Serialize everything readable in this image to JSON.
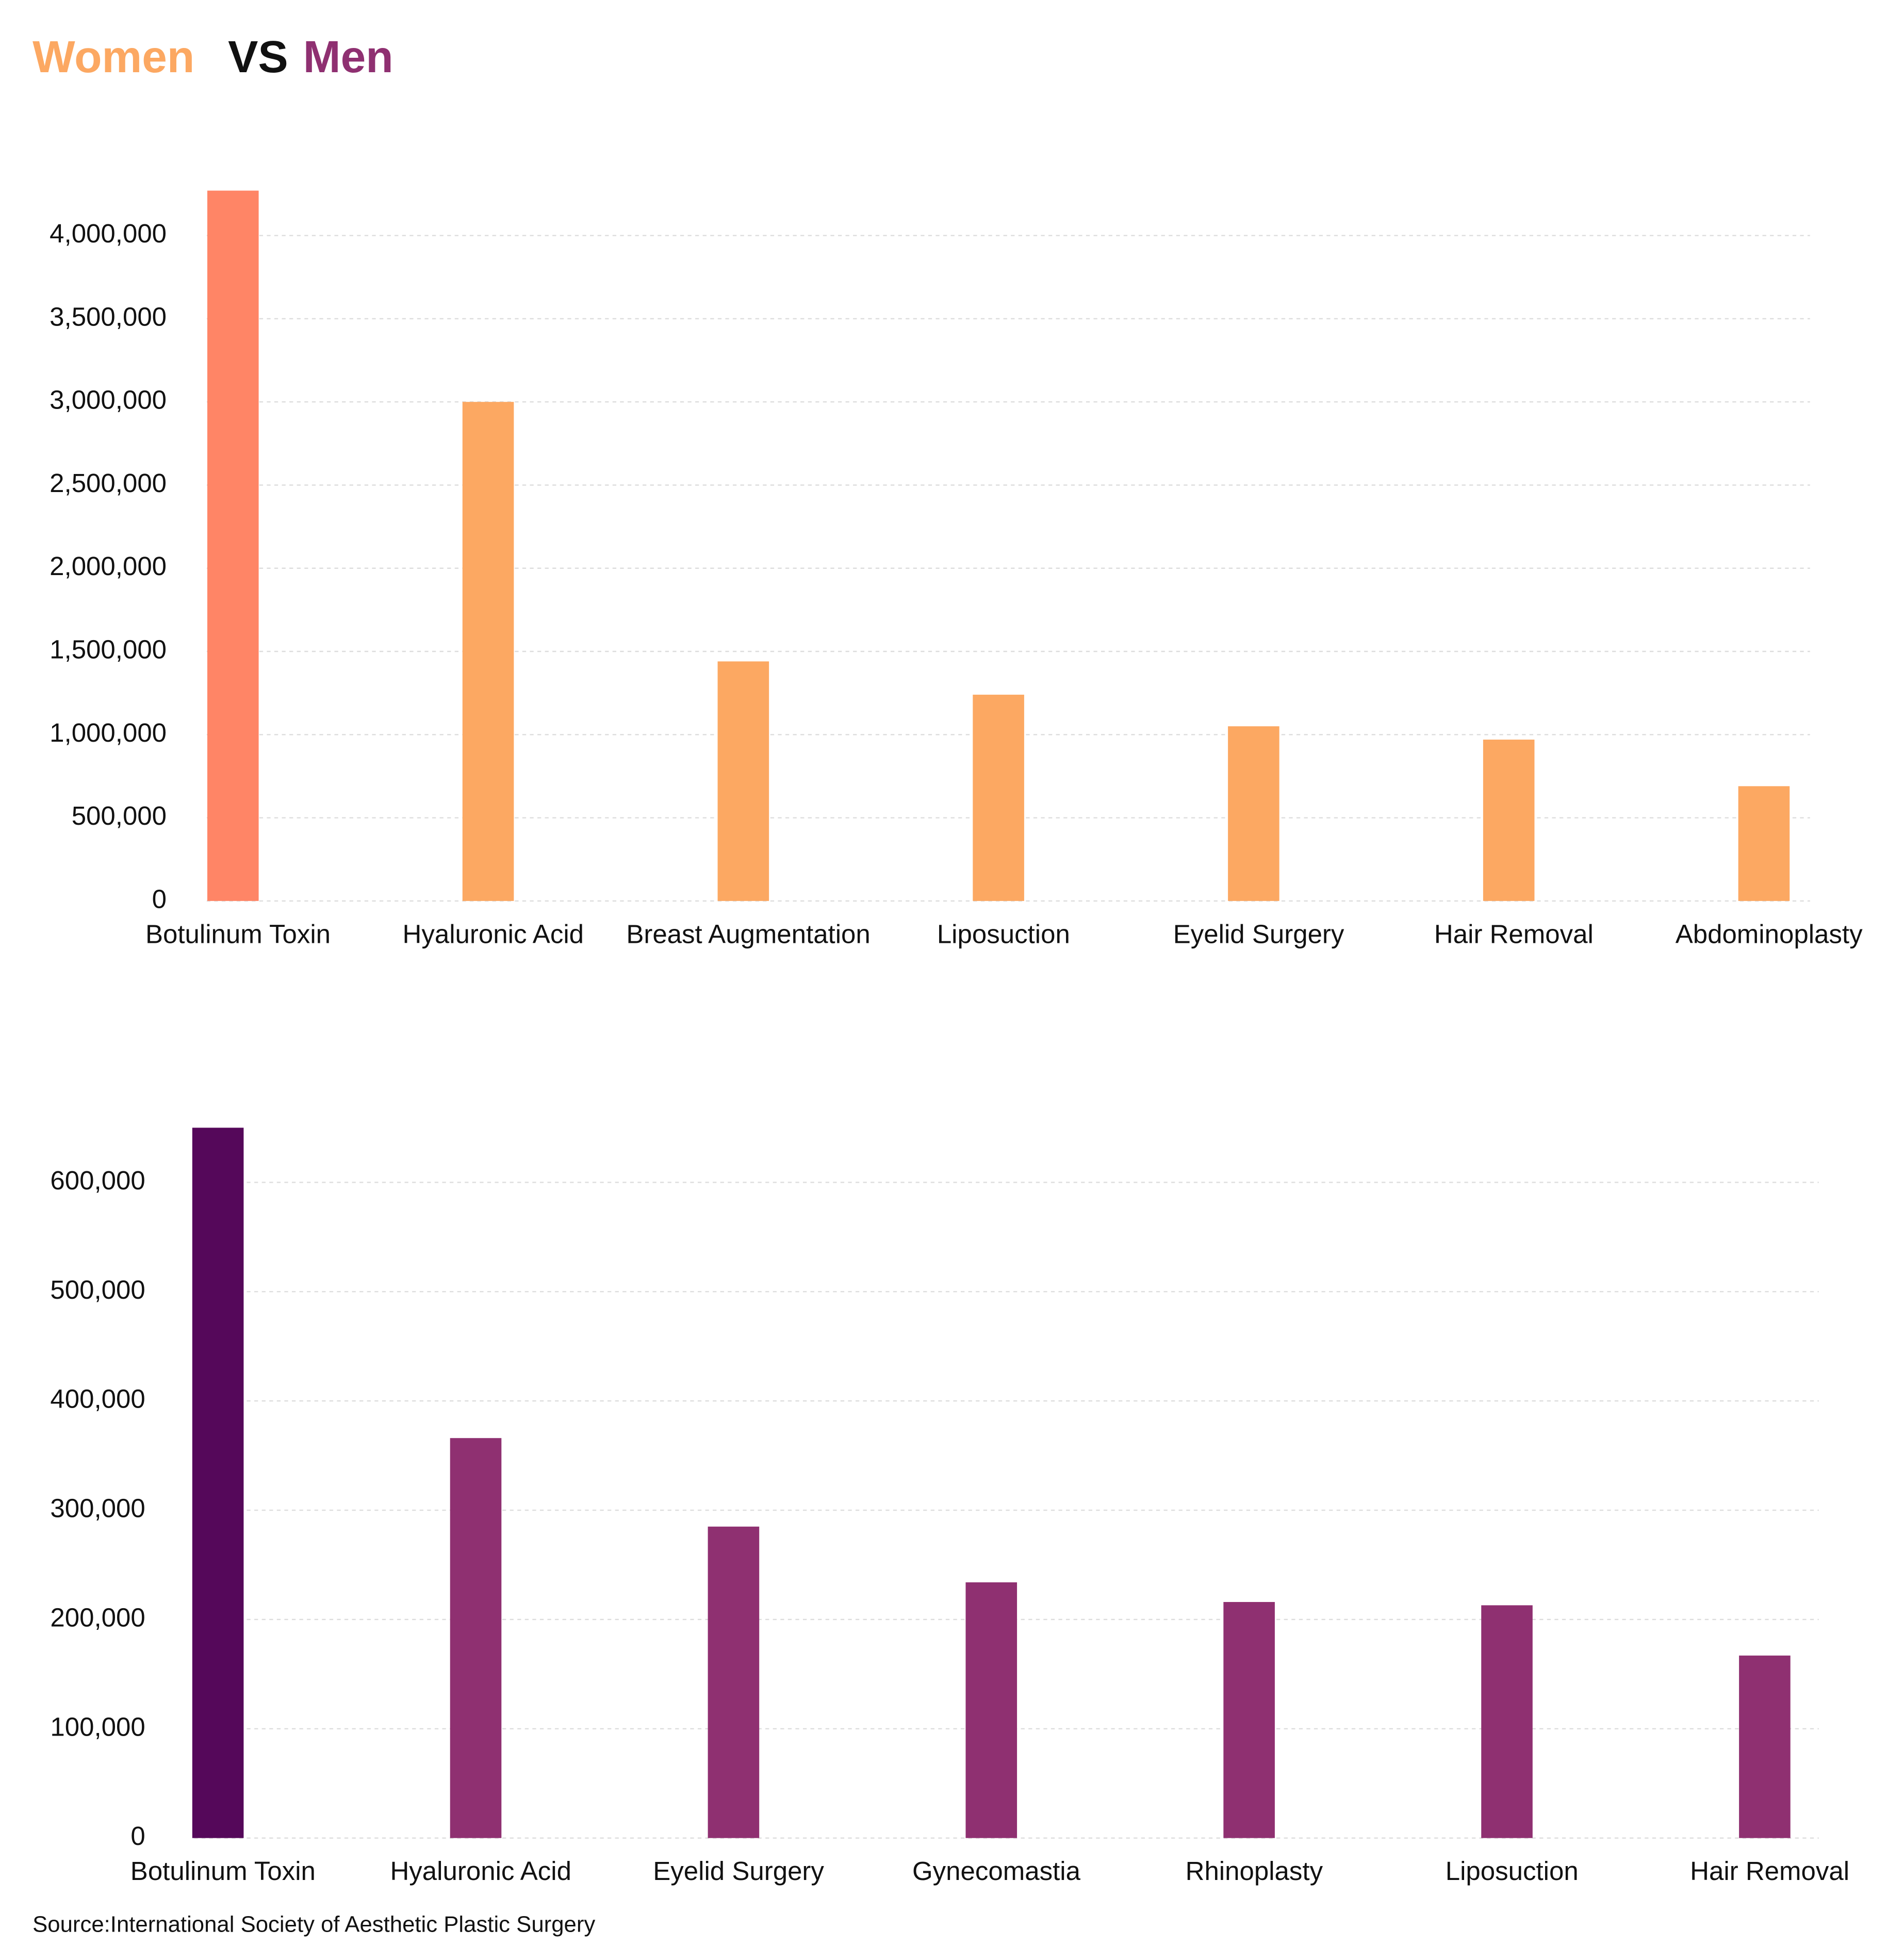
{
  "title": {
    "women": "Women",
    "vs": "VS",
    "men": "Men"
  },
  "source": "Source:International Society of Aesthetic Plastic Surgery",
  "chart_data": [
    {
      "type": "bar",
      "categories": [
        "Botulinum Toxin",
        "Hyaluronic Acid",
        "Breast Augmentation",
        "Liposuction",
        "Eyelid Surgery",
        "Hair Removal",
        "Abdominoplasty"
      ],
      "values": [
        4270000,
        3000000,
        1440000,
        1240000,
        1050000,
        970000,
        690000
      ],
      "colors": [
        "#ff8566",
        "#fca862",
        "#fca862",
        "#fca862",
        "#fca862",
        "#fca862",
        "#fca862"
      ],
      "ylim": [
        0,
        4300000
      ],
      "yticks": [
        0,
        {
          "value": 500000,
          "label": "500,000"
        },
        {
          "value": 1000000,
          "label": "1,000,000"
        },
        {
          "value": 1500000,
          "label": "1,500,000"
        },
        {
          "value": 2000000,
          "label": "2,000,000"
        },
        {
          "value": 2500000,
          "label": "2,500,000"
        },
        {
          "value": 3000000,
          "label": "3,000,000"
        },
        {
          "value": 3500000,
          "label": "3,500,000"
        },
        {
          "value": 4000000,
          "label": "4,000,000"
        }
      ],
      "grid": true
    },
    {
      "type": "bar",
      "categories": [
        "Botulinum Toxin",
        "Hyaluronic Acid",
        "Eyelid Surgery",
        "Gynecomastia",
        "Rhinoplasty",
        "Liposuction",
        "Hair Removal"
      ],
      "values": [
        650000,
        366000,
        285000,
        234000,
        216000,
        213000,
        167000
      ],
      "colors": [
        "#55085a",
        "#8f3071",
        "#8f3071",
        "#8f3071",
        "#8f3071",
        "#8f3071",
        "#8f3071"
      ],
      "ylim": [
        0,
        650000
      ],
      "yticks": [
        0,
        {
          "value": 100000,
          "label": "100,000"
        },
        {
          "value": 200000,
          "label": "200,000"
        },
        {
          "value": 300000,
          "label": "300,000"
        },
        {
          "value": 400000,
          "label": "400,000"
        },
        {
          "value": 500000,
          "label": "500,000"
        },
        {
          "value": 600000,
          "label": "600,000"
        }
      ],
      "grid": true
    }
  ]
}
